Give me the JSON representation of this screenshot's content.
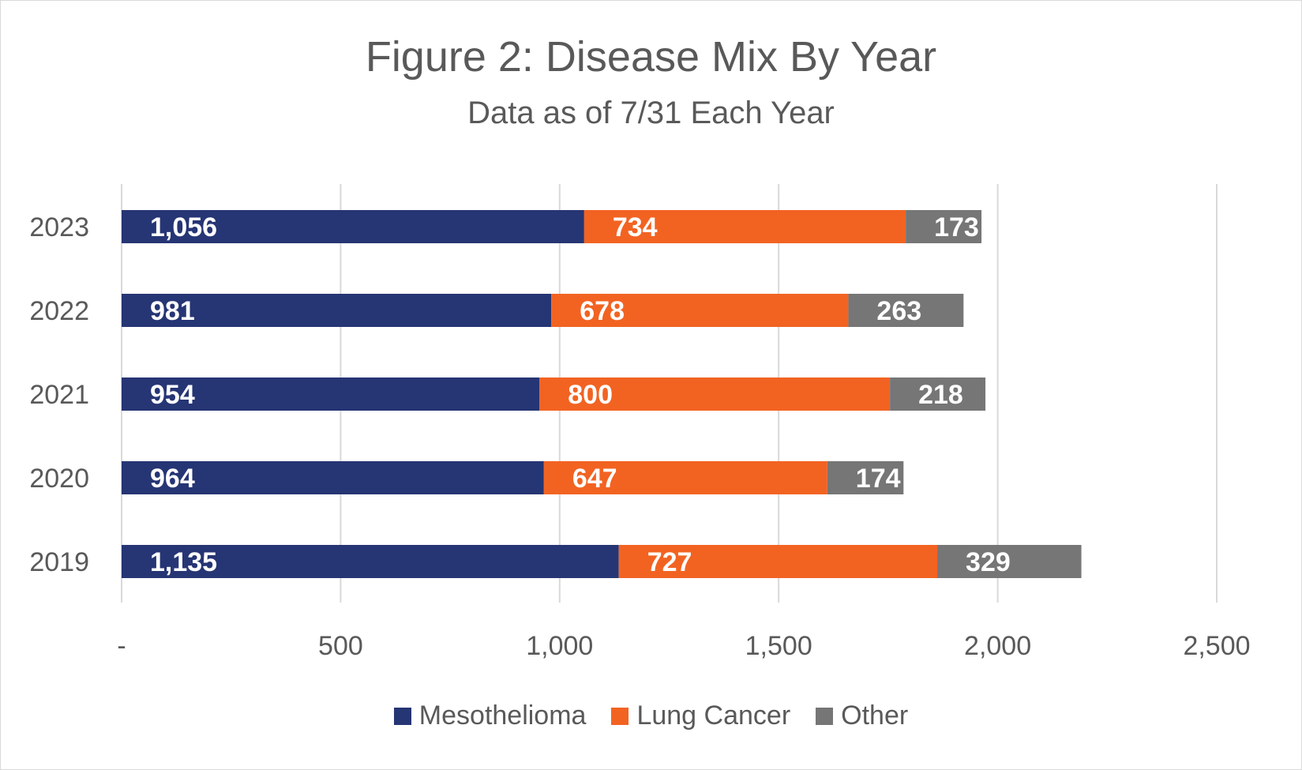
{
  "chart_data": {
    "type": "bar",
    "orientation": "horizontal",
    "stacked": true,
    "title": "Figure 2: Disease Mix By Year",
    "subtitle": "Data as of 7/31 Each Year",
    "categories": [
      "2023",
      "2022",
      "2021",
      "2020",
      "2019"
    ],
    "series": [
      {
        "name": "Mesothelioma",
        "color": "#263574",
        "values": [
          1056,
          981,
          954,
          964,
          1135
        ]
      },
      {
        "name": "Lung Cancer",
        "color": "#f26322",
        "values": [
          734,
          678,
          800,
          647,
          727
        ]
      },
      {
        "name": "Other",
        "color": "#767676",
        "values": [
          173,
          263,
          218,
          174,
          329
        ]
      }
    ],
    "data_labels": [
      [
        "1,056",
        "981",
        "954",
        "964",
        "1,135"
      ],
      [
        "734",
        "678",
        "800",
        "647",
        "727"
      ],
      [
        "173",
        "263",
        "218",
        "174",
        "329"
      ]
    ],
    "xlim": [
      0,
      2500
    ],
    "xticks": [
      0,
      500,
      1000,
      1500,
      2000,
      2500
    ],
    "xtick_labels": [
      "-",
      "500",
      "1,000",
      "1,500",
      "2,000",
      "2,500"
    ],
    "grid": "vertical gridlines",
    "legend_position": "bottom"
  }
}
